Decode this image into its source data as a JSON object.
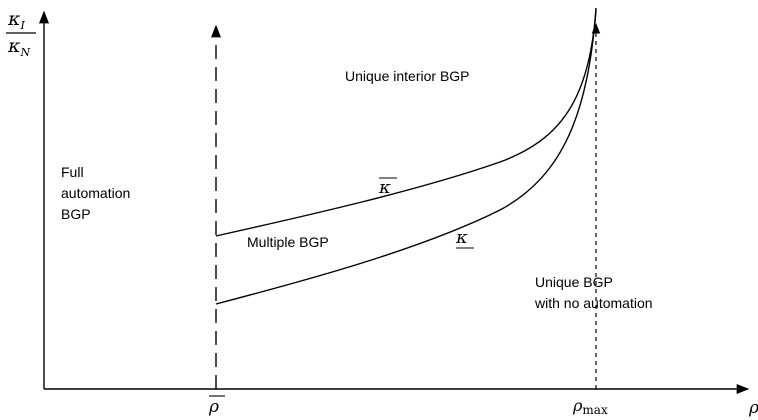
{
  "axes": {
    "y_label_num": {
      "main": "κ",
      "sub": "I"
    },
    "y_label_den": {
      "main": "κ",
      "sub": "N"
    },
    "x_label": "ρ"
  },
  "ticks": {
    "rho_bar": "ρ",
    "rho_max": {
      "main": "ρ",
      "sub": "max"
    }
  },
  "regions": {
    "full_automation": [
      "Full",
      "automation",
      "BGP"
    ],
    "unique_interior": "Unique interior BGP",
    "multiple": "Multiple BGP",
    "no_automation": [
      "Unique BGP",
      "with no automation"
    ]
  },
  "curves": {
    "upper": "κ",
    "lower": "κ"
  }
}
